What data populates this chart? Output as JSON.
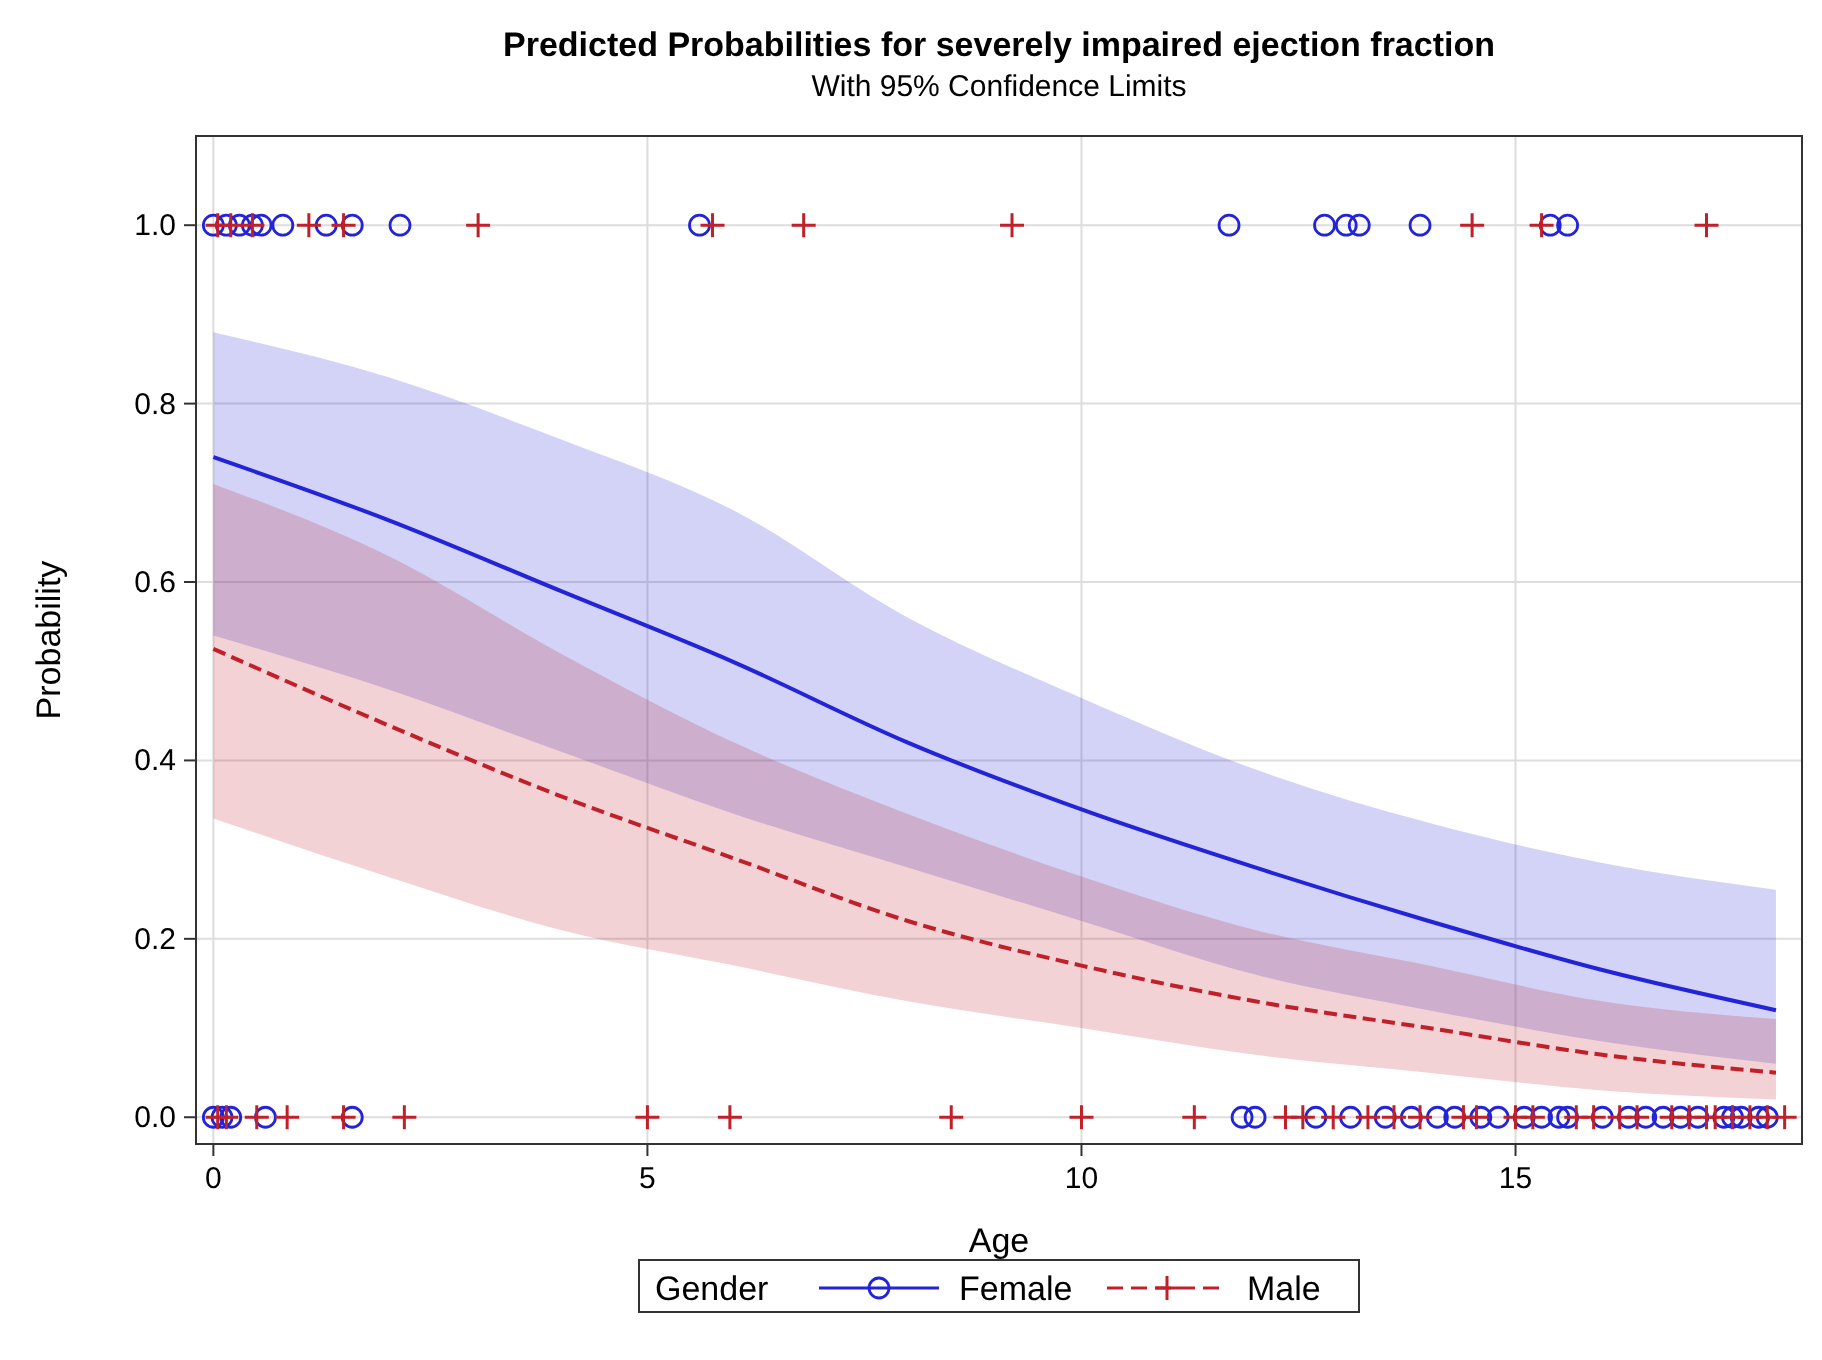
{
  "chart_data": {
    "type": "line",
    "title": "Predicted Probabilities for severely impaired ejection fraction",
    "subtitle": "With 95% Confidence Limits",
    "xlabel": "Age",
    "ylabel": "Probability",
    "legend_title": "Gender",
    "xlim": [
      -0.2,
      18.3
    ],
    "xticks": [
      0,
      5,
      10,
      15
    ],
    "ylim": [
      -0.03,
      1.1
    ],
    "yticks": [
      {
        "value": 0,
        "label": "0.0"
      },
      {
        "value": 0.2,
        "label": "0.2"
      },
      {
        "value": 0.4,
        "label": "0.4"
      },
      {
        "value": 0.6,
        "label": "0.6"
      },
      {
        "value": 0.8,
        "label": "0.8"
      },
      {
        "value": 1,
        "label": "1.0"
      }
    ],
    "grid": true,
    "legend": "bottom",
    "series": [
      {
        "name": "Female",
        "color": "#2323d8",
        "line_style": "solid",
        "x": [
          0,
          2,
          4,
          6,
          8,
          10,
          12,
          14,
          16,
          18
        ],
        "values": [
          0.74,
          0.67,
          0.59,
          0.51,
          0.42,
          0.345,
          0.28,
          0.22,
          0.165,
          0.12
        ],
        "lower": [
          0.54,
          0.48,
          0.41,
          0.34,
          0.28,
          0.22,
          0.16,
          0.12,
          0.085,
          0.06
        ],
        "upper": [
          0.88,
          0.83,
          0.76,
          0.68,
          0.56,
          0.47,
          0.39,
          0.33,
          0.285,
          0.255
        ]
      },
      {
        "name": "Male",
        "color": "#c0202a",
        "line_style": "dashed",
        "x": [
          0,
          2,
          4,
          6,
          8,
          10,
          12,
          14,
          16,
          18
        ],
        "values": [
          0.525,
          0.44,
          0.36,
          0.29,
          0.22,
          0.17,
          0.13,
          0.1,
          0.07,
          0.05
        ],
        "lower": [
          0.335,
          0.27,
          0.21,
          0.17,
          0.13,
          0.1,
          0.07,
          0.05,
          0.03,
          0.02
        ],
        "upper": [
          0.71,
          0.63,
          0.52,
          0.42,
          0.34,
          0.27,
          0.21,
          0.17,
          0.13,
          0.11
        ]
      },
      {
        "type": "scatter",
        "color": "#2323d8",
        "marker": "circle",
        "x": [
          0,
          0.15,
          0.3,
          0.45,
          0.55,
          0.8,
          1.3,
          1.6,
          2.15,
          5.6,
          11.7,
          12.8,
          13.05,
          13.2,
          13.9,
          15.4,
          15.6,
          0,
          0.1,
          0.2,
          0.6,
          1.6,
          11.85,
          12.0,
          12.7,
          13.1,
          13.5,
          13.8,
          14.1,
          14.3,
          14.6,
          14.8,
          15.1,
          15.3,
          15.5,
          15.6,
          16.0,
          16.3,
          16.5,
          16.7,
          16.9,
          17.1,
          17.4,
          17.5,
          17.6,
          17.8,
          17.9
        ],
        "values": [
          1,
          1,
          1,
          1,
          1,
          1,
          1,
          1,
          1,
          1,
          1,
          1,
          1,
          1,
          1,
          1,
          1,
          0,
          0,
          0,
          0,
          0,
          0,
          0,
          0,
          0,
          0,
          0,
          0,
          0,
          0,
          0,
          0,
          0,
          0,
          0,
          0,
          0,
          0,
          0,
          0,
          0,
          0,
          0,
          0,
          0,
          0
        ]
      },
      {
        "type": "scatter",
        "color": "#c0202a",
        "marker": "cross",
        "x": [
          0.05,
          0.2,
          0.45,
          1.1,
          1.5,
          3.05,
          5.75,
          6.8,
          9.2,
          14.5,
          15.3,
          17.2,
          0.05,
          0.15,
          0.5,
          0.85,
          1.5,
          2.2,
          5.0,
          5.95,
          8.5,
          10.0,
          11.3,
          12.35,
          12.55,
          12.9,
          13.3,
          13.6,
          13.9,
          14.4,
          14.55,
          15.0,
          15.2,
          15.7,
          15.9,
          16.2,
          16.4,
          16.8,
          17.0,
          17.2,
          17.3,
          17.5,
          17.7,
          17.9,
          18.1
        ],
        "values": [
          1,
          1,
          1,
          1,
          1,
          1,
          1,
          1,
          1,
          1,
          1,
          1,
          0,
          0,
          0,
          0,
          0,
          0,
          0,
          0,
          0,
          0,
          0,
          0,
          0,
          0,
          0,
          0,
          0,
          0,
          0,
          0,
          0,
          0,
          0,
          0,
          0,
          0,
          0,
          0,
          0,
          0,
          0,
          0,
          0
        ]
      }
    ]
  }
}
